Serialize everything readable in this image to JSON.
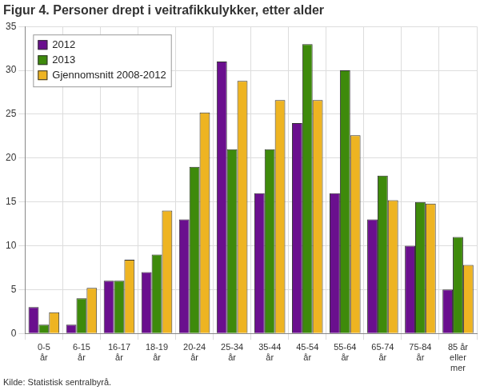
{
  "chart_data": {
    "type": "bar",
    "title": "Figur 4. Personer drept i veitrafikkulykker, etter alder",
    "source": "Kilde: Statistisk sentralbyrå.",
    "categories": [
      [
        "0-5",
        "år"
      ],
      [
        "6-15",
        "år"
      ],
      [
        "16-17",
        "år"
      ],
      [
        "18-19",
        "år"
      ],
      [
        "20-24",
        "år"
      ],
      [
        "25-34",
        "år"
      ],
      [
        "35-44",
        "år"
      ],
      [
        "45-54",
        "år"
      ],
      [
        "55-64",
        "år"
      ],
      [
        "65-74",
        "år"
      ],
      [
        "75-84",
        "år"
      ],
      [
        "85 år",
        "eller",
        "mer"
      ]
    ],
    "series": [
      {
        "name": "2012",
        "color": "#6a0f8e",
        "values": [
          3,
          1,
          6,
          7,
          13,
          31,
          16,
          24,
          16,
          13,
          10,
          5
        ]
      },
      {
        "name": "2013",
        "color": "#3e8a0b",
        "values": [
          1,
          4,
          6,
          9,
          19,
          21,
          21,
          33,
          30,
          18,
          15,
          11
        ]
      },
      {
        "name": "Gjennomsnitt 2008-2012",
        "color": "#eeb422",
        "values": [
          2.4,
          5.2,
          8.4,
          14,
          25.2,
          28.8,
          26.6,
          26.6,
          22.6,
          15.2,
          14.8,
          7.8
        ]
      }
    ],
    "ylim": [
      0,
      35
    ],
    "yticks": [
      0,
      5,
      10,
      15,
      20,
      25,
      30,
      35
    ],
    "grid": true,
    "legend": "top-left"
  }
}
